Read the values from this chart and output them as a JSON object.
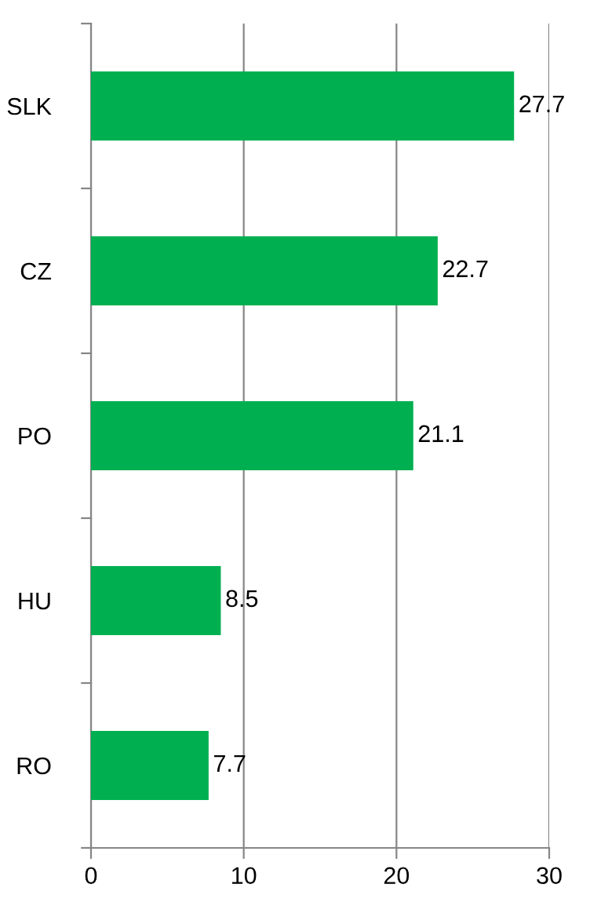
{
  "chart_data": {
    "type": "bar",
    "orientation": "horizontal",
    "categories": [
      "SLK",
      "CZ",
      "PO",
      "HU",
      "RO"
    ],
    "values": [
      27.7,
      22.7,
      21.1,
      8.5,
      7.7
    ],
    "color": "#00b050",
    "xlim": [
      0,
      30
    ],
    "xticks": [
      0,
      10,
      20,
      30
    ],
    "grid": "x",
    "data_labels": true
  }
}
